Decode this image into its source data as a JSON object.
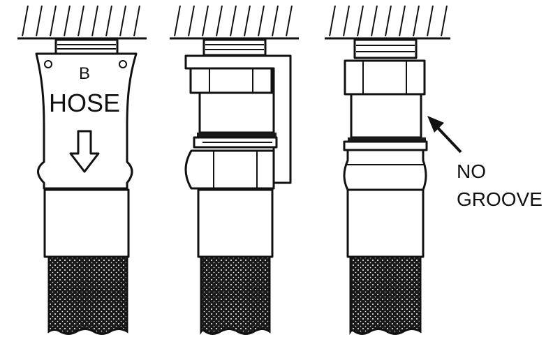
{
  "labels": {
    "tag_letter": "B",
    "tag_word": "HOSE",
    "callout_line1": "NO",
    "callout_line2": "GROOVE"
  },
  "colors": {
    "ink": "#111111",
    "paper": "#ffffff"
  },
  "icons": {
    "tag_arrow": "down-arrow-icon"
  }
}
